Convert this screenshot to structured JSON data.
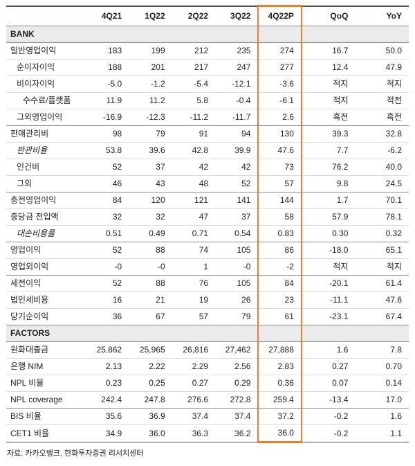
{
  "colors": {
    "highlight_border": "#E87E2E",
    "section_bg": "#EBEBEB",
    "rule_dark": "#8a8a8a",
    "rule_light": "#dcdcdc",
    "text": "#222222"
  },
  "source_note": "자료: 카카오뱅크, 한화투자증권 리서치센터",
  "table": {
    "columns": [
      "4Q21",
      "1Q22",
      "2Q22",
      "3Q22",
      "4Q22P",
      "QoQ",
      "YoY"
    ],
    "highlighted_column": "4Q22P",
    "highlight_index": 4,
    "sections": [
      {
        "label": "BANK",
        "rows": [
          {
            "label": "일반영업이익",
            "indent": 0,
            "italic": false,
            "sep": false,
            "values": [
              "183",
              "199",
              "212",
              "235",
              "274",
              "16.7",
              "50.0"
            ]
          },
          {
            "label": "순이자이익",
            "indent": 1,
            "italic": false,
            "sep": false,
            "values": [
              "188",
              "201",
              "217",
              "247",
              "277",
              "12.4",
              "47.9"
            ]
          },
          {
            "label": "비이자이익",
            "indent": 1,
            "italic": false,
            "sep": false,
            "values": [
              "-5.0",
              "-1.2",
              "-5.4",
              "-12.1",
              "-3.6",
              "적지",
              "적지"
            ]
          },
          {
            "label": "수수료/플랫폼",
            "indent": 2,
            "italic": false,
            "sep": false,
            "values": [
              "11.9",
              "11.2",
              "5.8",
              "-0.4",
              "-6.1",
              "적지",
              "적전"
            ]
          },
          {
            "label": "그외영업이익",
            "indent": 1,
            "italic": false,
            "sep": false,
            "values": [
              "-16.9",
              "-12.3",
              "-11.2",
              "-11.7",
              "2.6",
              "흑전",
              "흑전"
            ]
          },
          {
            "label": "판매관리비",
            "indent": 0,
            "italic": false,
            "sep": true,
            "values": [
              "98",
              "79",
              "91",
              "94",
              "130",
              "39.3",
              "32.8"
            ]
          },
          {
            "label": "판관비율",
            "indent": 1,
            "italic": true,
            "sep": false,
            "values": [
              "53.8",
              "39.6",
              "42.8",
              "39.9",
              "47.6",
              "7.7",
              "-6.2"
            ]
          },
          {
            "label": "인건비",
            "indent": 1,
            "italic": false,
            "sep": false,
            "values": [
              "52",
              "37",
              "42",
              "42",
              "73",
              "76.2",
              "40.0"
            ]
          },
          {
            "label": "그외",
            "indent": 1,
            "italic": false,
            "sep": false,
            "values": [
              "46",
              "43",
              "48",
              "52",
              "57",
              "9.8",
              "24.5"
            ]
          },
          {
            "label": "충전영업이익",
            "indent": 0,
            "italic": false,
            "sep": true,
            "values": [
              "84",
              "120",
              "121",
              "141",
              "144",
              "1.7",
              "70.1"
            ]
          },
          {
            "label": "충당금 전입액",
            "indent": 0,
            "italic": false,
            "sep": false,
            "values": [
              "32",
              "32",
              "47",
              "37",
              "58",
              "57.9",
              "78.1"
            ]
          },
          {
            "label": "대손비용률",
            "indent": 1,
            "italic": true,
            "sep": false,
            "values": [
              "0.51",
              "0.49",
              "0.71",
              "0.54",
              "0.83",
              "0.30",
              "0.32"
            ]
          },
          {
            "label": "영업이익",
            "indent": 0,
            "italic": false,
            "sep": true,
            "values": [
              "52",
              "88",
              "74",
              "105",
              "86",
              "-18.0",
              "65.1"
            ]
          },
          {
            "label": "영업외이익",
            "indent": 0,
            "italic": false,
            "sep": false,
            "values": [
              "-0",
              "-0",
              "1",
              "-0",
              "-2",
              "적지",
              "적지"
            ]
          },
          {
            "label": "세전이익",
            "indent": 0,
            "italic": false,
            "sep": true,
            "values": [
              "52",
              "88",
              "76",
              "105",
              "84",
              "-20.1",
              "61.4"
            ]
          },
          {
            "label": "법인세비용",
            "indent": 0,
            "italic": false,
            "sep": false,
            "values": [
              "16",
              "21",
              "19",
              "26",
              "23",
              "-11.1",
              "47.6"
            ]
          },
          {
            "label": "당기순이익",
            "indent": 0,
            "italic": false,
            "sep": false,
            "values": [
              "36",
              "67",
              "57",
              "79",
              "61",
              "-23.1",
              "67.4"
            ]
          }
        ]
      },
      {
        "label": "FACTORS",
        "rows": [
          {
            "label": "원화대출금",
            "indent": 0,
            "italic": false,
            "sep": false,
            "values": [
              "25,862",
              "25,965",
              "26,816",
              "27,462",
              "27,888",
              "1.6",
              "7.8"
            ]
          },
          {
            "label": "은행 NIM",
            "indent": 0,
            "italic": false,
            "sep": false,
            "values": [
              "2.13",
              "2.22",
              "2.29",
              "2.56",
              "2.83",
              "0.27",
              "0.70"
            ]
          },
          {
            "label": "NPL 비율",
            "indent": 0,
            "italic": false,
            "sep": false,
            "values": [
              "0.23",
              "0.25",
              "0.27",
              "0.29",
              "0.36",
              "0.07",
              "0.14"
            ]
          },
          {
            "label": "NPL coverage",
            "indent": 0,
            "italic": false,
            "sep": false,
            "values": [
              "242.4",
              "247.8",
              "276.6",
              "272.8",
              "259.4",
              "-13.4",
              "17.0"
            ]
          },
          {
            "label": "BIS 비율",
            "indent": 0,
            "italic": false,
            "sep": true,
            "values": [
              "35.6",
              "36.9",
              "37.4",
              "37.4",
              "37.2",
              "-0.2",
              "1.6"
            ]
          },
          {
            "label": "CET1 비율",
            "indent": 0,
            "italic": false,
            "sep": false,
            "values": [
              "34.9",
              "36.0",
              "36.3",
              "36.2",
              "36.0",
              "-0.2",
              "1.1"
            ]
          }
        ]
      }
    ]
  }
}
